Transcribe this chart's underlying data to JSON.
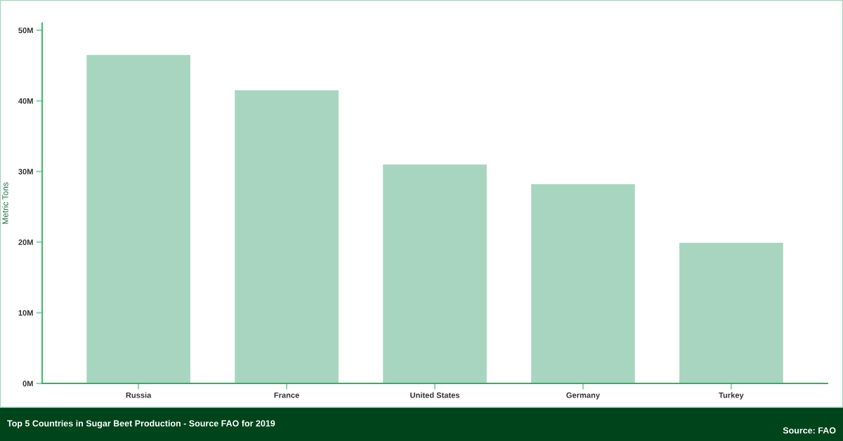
{
  "chart_data": {
    "type": "bar",
    "title": "Top 5 Countries in Sugar Beet Production - Source FAO for 2019",
    "ylabel": "Metric Tons",
    "categories": [
      "Russia",
      "France",
      "United States",
      "Germany",
      "Turkey"
    ],
    "values": [
      46.5,
      41.5,
      31.0,
      28.2,
      19.9
    ],
    "color": "#a8d5c0",
    "ylim": [
      0,
      51
    ],
    "yticks": [
      {
        "value": 0,
        "label": "0M"
      },
      {
        "value": 10,
        "label": "10M"
      },
      {
        "value": 20,
        "label": "20M"
      },
      {
        "value": 30,
        "label": "30M"
      },
      {
        "value": 40,
        "label": "40M"
      },
      {
        "value": 50,
        "label": "50M"
      }
    ],
    "annotations": [
      "Source: FAO"
    ]
  }
}
